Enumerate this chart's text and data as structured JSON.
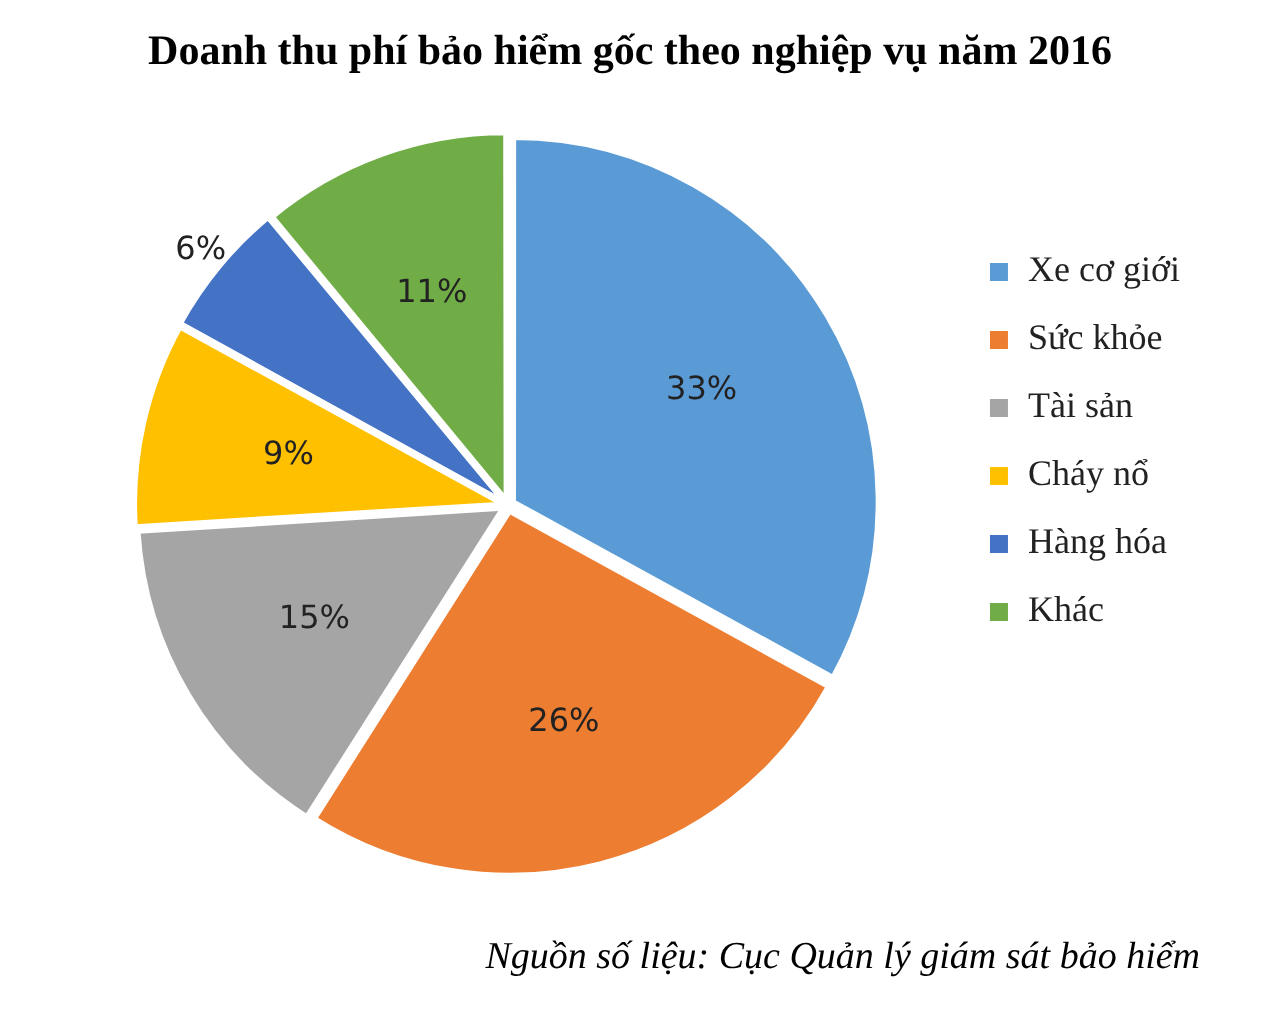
{
  "chart_data": {
    "type": "pie",
    "title": "Doanh thu phí bảo hiểm gốc theo nghiệp vụ năm 2016",
    "categories": [
      "Xe cơ giới",
      "Sức khỏe",
      "Tài sản",
      "Cháy nổ",
      "Hàng hóa",
      "Khác"
    ],
    "values": [
      33,
      26,
      15,
      9,
      6,
      11
    ],
    "colors": [
      "#5b9bd5",
      "#ed7d31",
      "#a5a5a5",
      "#ffc000",
      "#4472c4",
      "#70ad47"
    ],
    "value_labels": [
      "33%",
      "26%",
      "15%",
      "9%",
      "6%",
      "11%"
    ],
    "legend": "right",
    "annotations": [
      "Nguồn số liệu: Cục Quản lý giám sát bảo hiểm"
    ]
  }
}
